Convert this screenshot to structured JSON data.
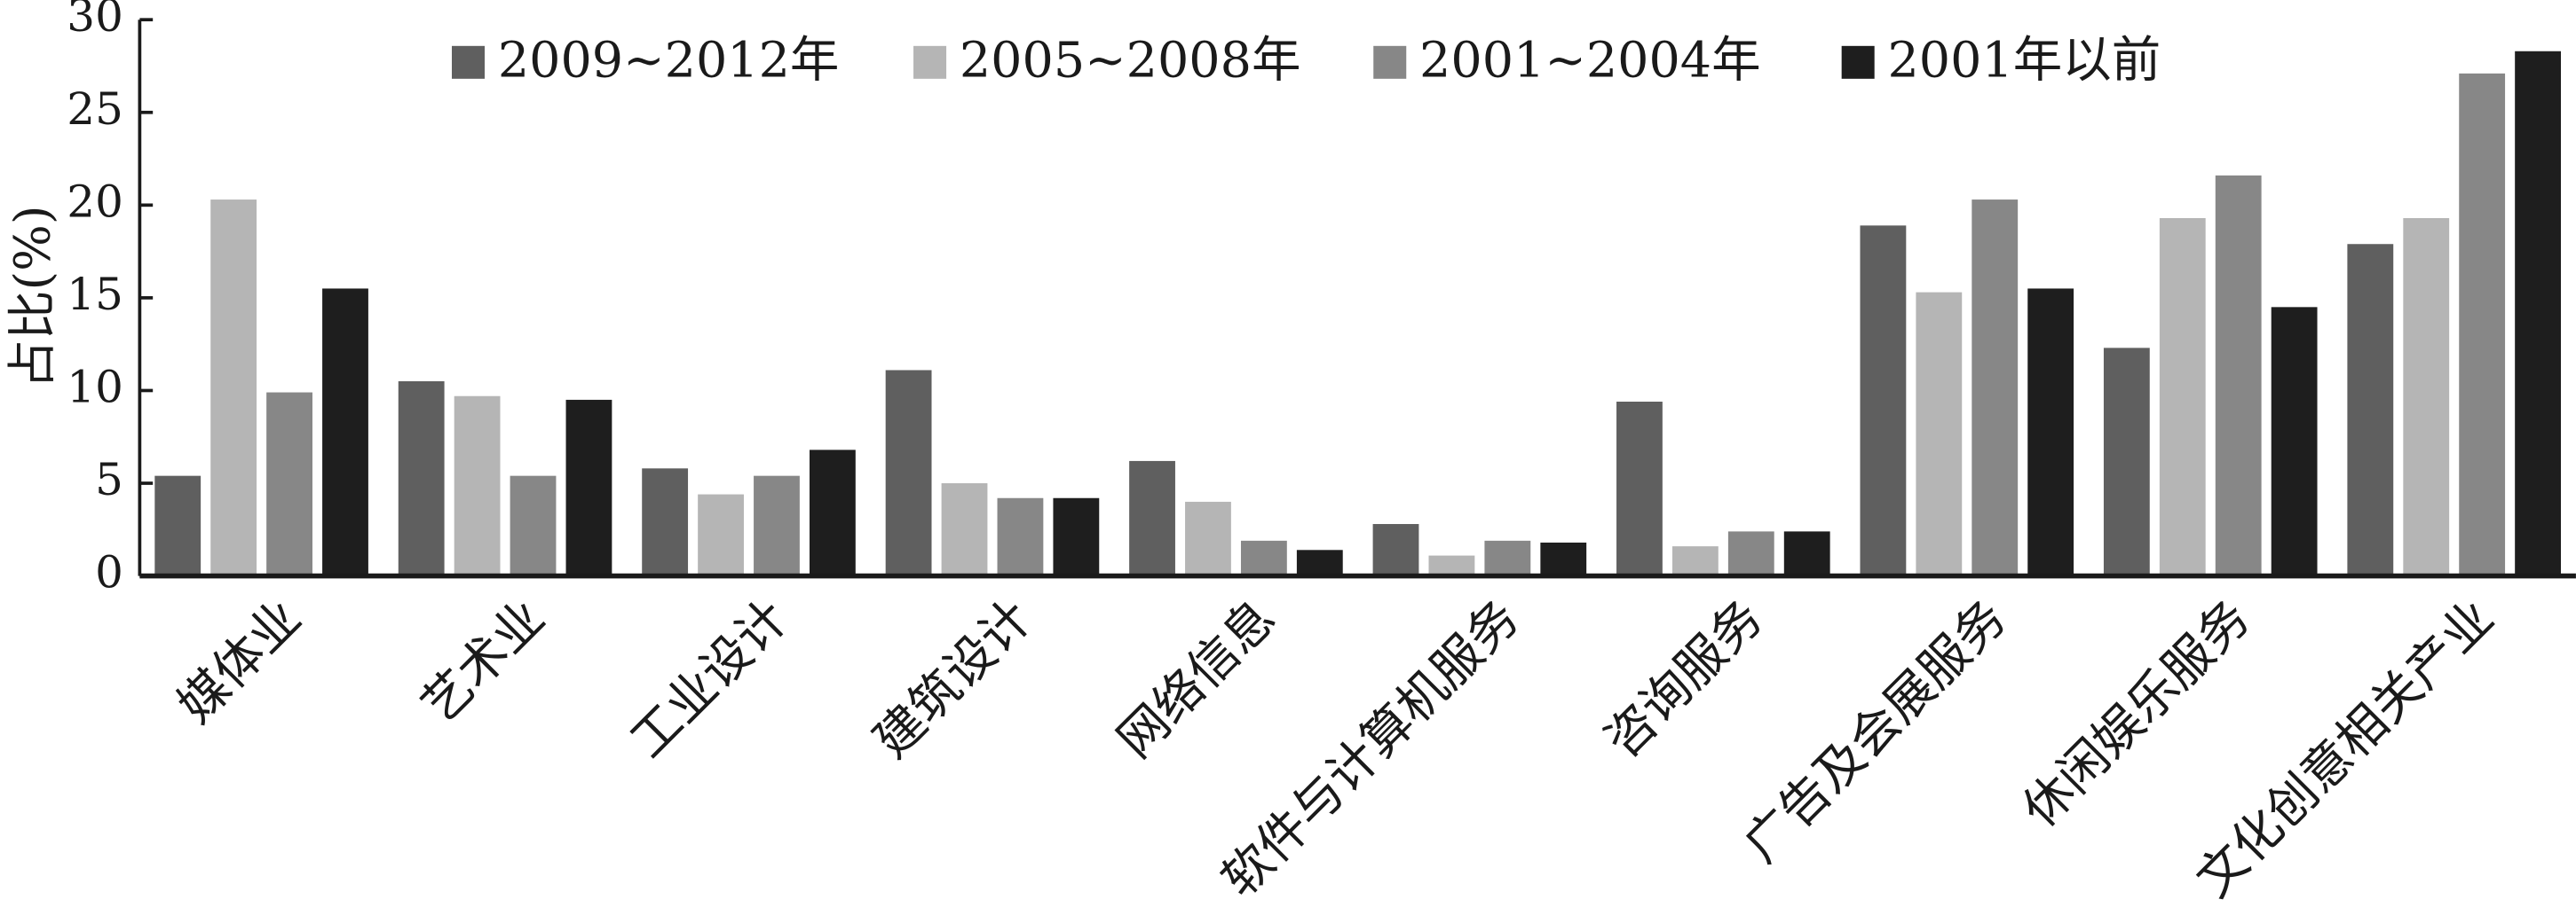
{
  "chart_data": {
    "type": "bar",
    "y_label": "占比(%)",
    "categories": [
      "媒体业",
      "艺术业",
      "工业设计",
      "建筑设计",
      "网络信息",
      "软件与计算机服务",
      "咨询服务",
      "广告及会展服务",
      "休闲娱乐服务",
      "文化创意相关产业"
    ],
    "series": [
      {
        "name": "2009~2012年",
        "color": "#5f5f5f",
        "values": [
          5.4,
          10.5,
          5.8,
          11.1,
          6.2,
          2.8,
          9.4,
          18.9,
          12.3,
          17.9
        ]
      },
      {
        "name": "2005~2008年",
        "color": "#b5b5b5",
        "values": [
          20.3,
          9.7,
          4.4,
          5.0,
          4.0,
          1.1,
          1.6,
          15.3,
          19.3,
          19.3
        ]
      },
      {
        "name": "2001~2004年",
        "color": "#878787",
        "values": [
          9.9,
          5.4,
          5.4,
          4.2,
          1.9,
          1.9,
          2.4,
          20.3,
          21.6,
          27.1
        ]
      },
      {
        "name": "2001年以前",
        "color": "#1e1e1e",
        "values": [
          15.5,
          9.5,
          6.8,
          4.2,
          1.4,
          1.8,
          2.4,
          15.5,
          14.5,
          28.3
        ]
      }
    ],
    "ylim": [
      0,
      30
    ],
    "yticks": [
      0,
      5,
      10,
      15,
      20,
      25,
      30
    ],
    "legend": "top",
    "grid": false
  }
}
